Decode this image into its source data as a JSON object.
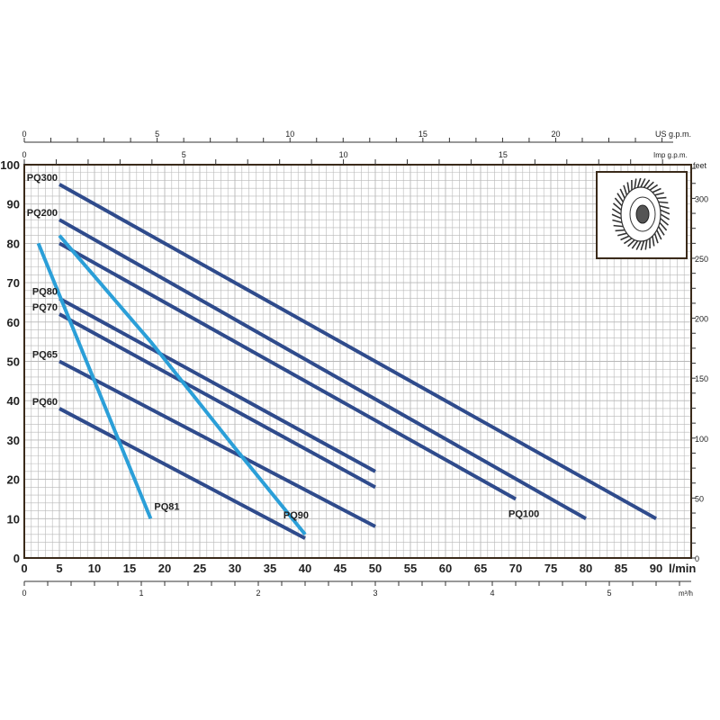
{
  "chart_data": {
    "type": "line",
    "xlabel": "l/min",
    "ylabel": "",
    "xlim": [
      0,
      95
    ],
    "ylim": [
      0,
      100
    ],
    "x_ticks": [
      0,
      5,
      10,
      15,
      20,
      25,
      30,
      35,
      40,
      45,
      50,
      55,
      60,
      65,
      70,
      75,
      80,
      85,
      90
    ],
    "y_ticks": [
      0,
      10,
      20,
      30,
      40,
      50,
      60,
      70,
      80,
      90,
      100
    ],
    "grid": true,
    "secondary_axes": {
      "us_gpm": {
        "label": "US g.p.m.",
        "ticks": [
          0,
          5,
          10,
          15,
          20
        ]
      },
      "imp_gpm": {
        "label": "Imp g.p.m.",
        "ticks": [
          0,
          5,
          10,
          15
        ]
      },
      "m3h": {
        "label": "m³/h",
        "ticks": [
          0,
          1,
          2,
          3,
          4,
          5
        ]
      },
      "feet": {
        "label": "feet",
        "ticks": [
          0,
          50,
          100,
          150,
          200,
          250,
          300
        ]
      }
    },
    "colors": {
      "dark": "#2f4b8c",
      "light": "#2b9fd8",
      "grid": "#b8b8b8"
    },
    "series": [
      {
        "name": "PQ300",
        "color": "dark",
        "points": [
          [
            5,
            95
          ],
          [
            90,
            10
          ]
        ]
      },
      {
        "name": "PQ200",
        "color": "dark",
        "points": [
          [
            5,
            86
          ],
          [
            80,
            10
          ]
        ]
      },
      {
        "name": "PQ100",
        "color": "dark",
        "points": [
          [
            5,
            80
          ],
          [
            70,
            15
          ]
        ]
      },
      {
        "name": "PQ80",
        "color": "dark",
        "points": [
          [
            5,
            66
          ],
          [
            50,
            22
          ]
        ]
      },
      {
        "name": "PQ70",
        "color": "dark",
        "points": [
          [
            5,
            62
          ],
          [
            50,
            18
          ]
        ]
      },
      {
        "name": "PQ65",
        "color": "dark",
        "points": [
          [
            5,
            50
          ],
          [
            50,
            8
          ]
        ]
      },
      {
        "name": "PQ60",
        "color": "dark",
        "points": [
          [
            5,
            38
          ],
          [
            40,
            5
          ]
        ]
      },
      {
        "name": "PQ81",
        "color": "light",
        "points": [
          [
            2,
            80
          ],
          [
            18,
            10
          ]
        ]
      },
      {
        "name": "PQ90",
        "color": "light",
        "points": [
          [
            5,
            82
          ],
          [
            18,
            55
          ],
          [
            30,
            28
          ],
          [
            40,
            6
          ]
        ]
      }
    ]
  }
}
